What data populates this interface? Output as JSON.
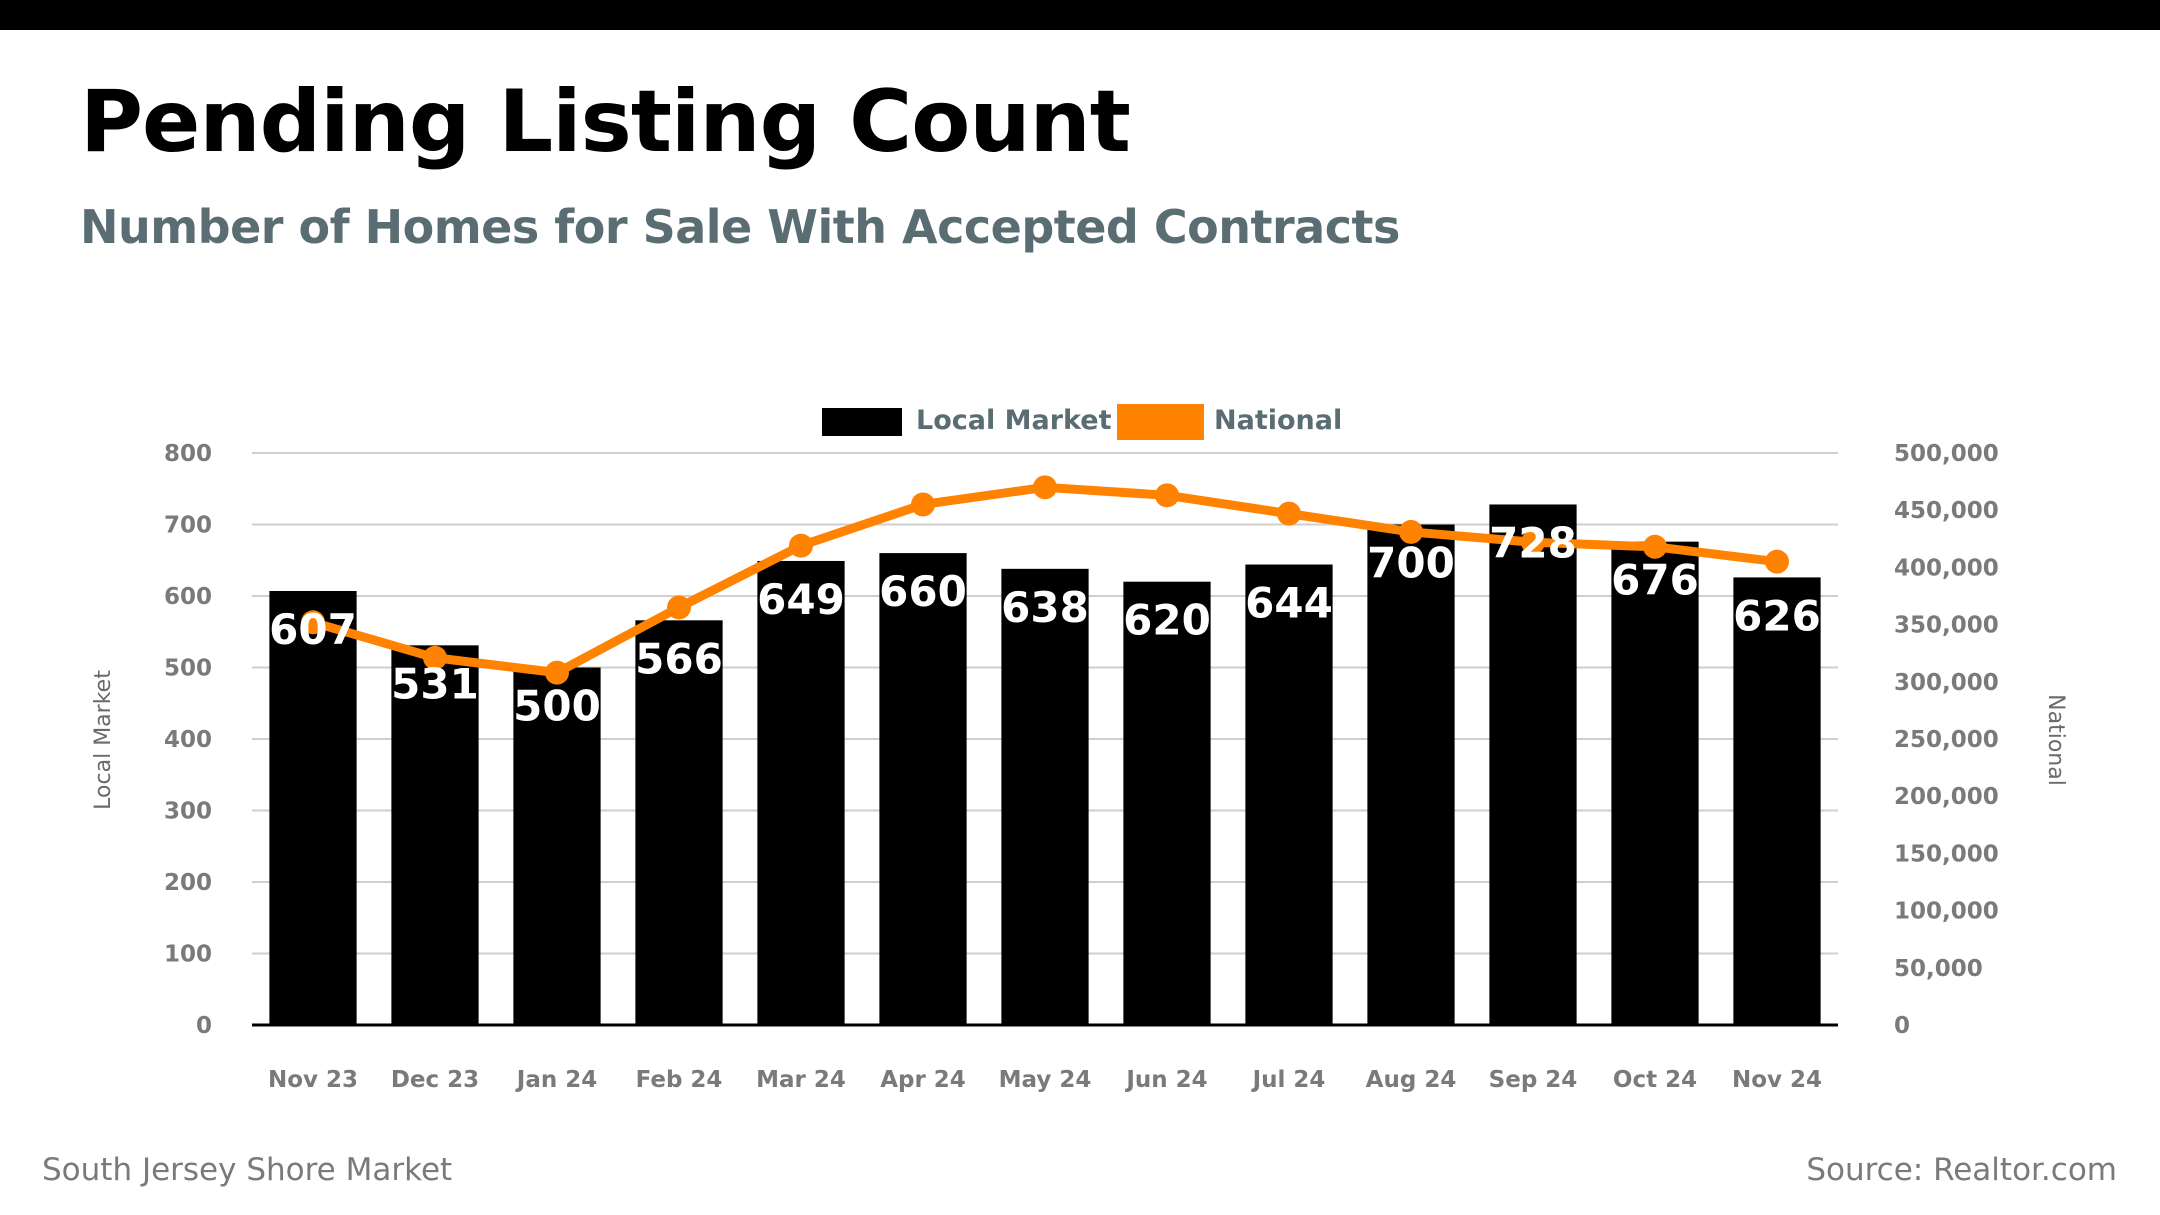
{
  "header": {
    "title": "Pending Listing Count",
    "subtitle": "Number of Homes for Sale With Accepted Contracts"
  },
  "footer": {
    "left": "South Jersey Shore Market",
    "right": "Source: Realtor.com"
  },
  "colors": {
    "local": "#000000",
    "national": "#ff8300",
    "grid": "#cfcfcf",
    "tick_text": "#7a7a7a",
    "subtitle": "#5a6d73"
  },
  "chart_data": {
    "type": "bar",
    "title": "Pending Listing Count",
    "subtitle": "Number of Homes for Sale With Accepted Contracts",
    "categories": [
      "Nov 23",
      "Dec 23",
      "Jan 24",
      "Feb 24",
      "Mar 24",
      "Apr 24",
      "May 24",
      "Jun 24",
      "Jul 24",
      "Aug 24",
      "Sep 24",
      "Oct 24",
      "Nov 24"
    ],
    "series": [
      {
        "name": "Local Market",
        "type": "bar",
        "axis": "left",
        "values": [
          607,
          531,
          500,
          566,
          649,
          660,
          638,
          620,
          644,
          700,
          728,
          676,
          626
        ],
        "data_labels": [
          "607",
          "531",
          "500",
          "566",
          "649",
          "660",
          "638",
          "620",
          "644",
          "700",
          "728",
          "676",
          "626"
        ]
      },
      {
        "name": "National",
        "type": "line",
        "axis": "right",
        "values": [
          352000,
          321000,
          308000,
          365000,
          419000,
          455000,
          470000,
          463000,
          447000,
          431000,
          422000,
          418000,
          405000
        ]
      }
    ],
    "ylabel": "Local Market",
    "ylabel_right": "National",
    "xlabel": "",
    "ylim": [
      0,
      800
    ],
    "ylim_right": [
      0,
      500000
    ],
    "yticks": [
      "0",
      "100",
      "200",
      "300",
      "400",
      "500",
      "600",
      "700",
      "800"
    ],
    "yticks_right": [
      "0",
      "50,000",
      "100,000",
      "150,000",
      "200,000",
      "250,000",
      "300,000",
      "350,000",
      "400,000",
      "450,000",
      "500,000"
    ],
    "grid": true,
    "legend": {
      "position": "top-center",
      "entries": [
        "Local Market",
        "National"
      ]
    }
  }
}
